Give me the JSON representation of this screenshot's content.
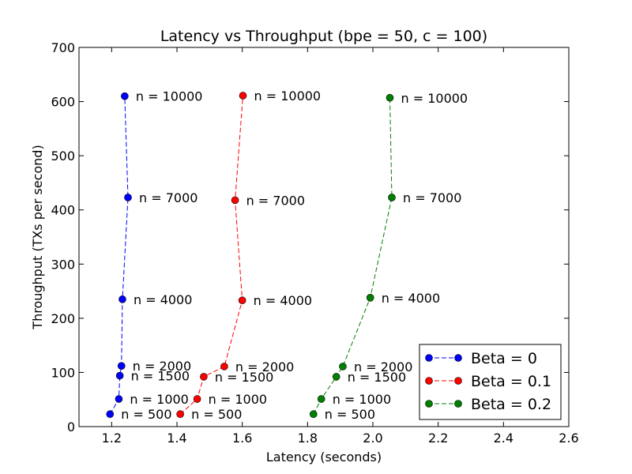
{
  "chart_data": {
    "type": "line",
    "title": "Latency vs Throughput (bpe = 50, c = 100)",
    "xlabel": "Latency (seconds)",
    "ylabel": "Throughput (TXs per second)",
    "xlim": [
      1.1,
      2.6
    ],
    "ylim": [
      0,
      700
    ],
    "xticks": [
      1.2,
      1.4,
      1.6,
      1.8,
      2.0,
      2.2,
      2.4,
      2.6
    ],
    "xtick_labels": [
      "1.2",
      "1.4",
      "1.6",
      "1.8",
      "2.0",
      "2.2",
      "2.4",
      "2.6"
    ],
    "yticks": [
      0,
      100,
      200,
      300,
      400,
      500,
      600,
      700
    ],
    "ytick_labels": [
      "0",
      "100",
      "200",
      "300",
      "400",
      "500",
      "600",
      "700"
    ],
    "grid": false,
    "legend_position": "lower-right",
    "series": [
      {
        "name": "Beta = 0",
        "color": "#0000ff",
        "points": [
          {
            "x": 1.195,
            "y": 23,
            "label": "n = 500"
          },
          {
            "x": 1.222,
            "y": 51,
            "label": "n = 1000"
          },
          {
            "x": 1.225,
            "y": 94,
            "label": "n = 1500"
          },
          {
            "x": 1.23,
            "y": 112,
            "label": "n = 2000"
          },
          {
            "x": 1.233,
            "y": 235,
            "label": "n = 4000"
          },
          {
            "x": 1.25,
            "y": 423,
            "label": "n = 7000"
          },
          {
            "x": 1.24,
            "y": 610,
            "label": "n = 10000"
          }
        ]
      },
      {
        "name": "Beta = 0.1",
        "color": "#ff0000",
        "points": [
          {
            "x": 1.41,
            "y": 23,
            "label": "n = 500"
          },
          {
            "x": 1.462,
            "y": 51,
            "label": "n = 1000"
          },
          {
            "x": 1.482,
            "y": 92,
            "label": "n = 1500"
          },
          {
            "x": 1.545,
            "y": 111,
            "label": "n = 2000"
          },
          {
            "x": 1.6,
            "y": 233,
            "label": "n = 4000"
          },
          {
            "x": 1.578,
            "y": 418,
            "label": "n = 7000"
          },
          {
            "x": 1.602,
            "y": 611,
            "label": "n = 10000"
          }
        ]
      },
      {
        "name": "Beta = 0.2",
        "color": "#008000",
        "points": [
          {
            "x": 1.818,
            "y": 23,
            "label": "n = 500"
          },
          {
            "x": 1.842,
            "y": 51,
            "label": "n = 1000"
          },
          {
            "x": 1.888,
            "y": 92,
            "label": "n = 1500"
          },
          {
            "x": 1.908,
            "y": 111,
            "label": "n = 2000"
          },
          {
            "x": 1.992,
            "y": 238,
            "label": "n = 4000"
          },
          {
            "x": 2.058,
            "y": 423,
            "label": "n = 7000"
          },
          {
            "x": 2.052,
            "y": 607,
            "label": "n = 10000"
          }
        ]
      }
    ]
  }
}
